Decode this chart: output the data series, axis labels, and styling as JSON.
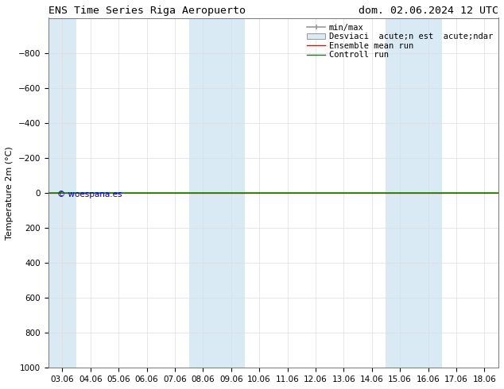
{
  "title_left": "ENS Time Series Riga Aeropuerto",
  "title_right": "dom. 02.06.2024 12 UTC",
  "ylabel": "Temperature 2m (°C)",
  "ylim": [
    -1000,
    1000
  ],
  "yticks": [
    -800,
    -600,
    -400,
    -200,
    0,
    200,
    400,
    600,
    800,
    1000
  ],
  "xlabels": [
    "03.06",
    "04.06",
    "05.06",
    "06.06",
    "07.06",
    "08.06",
    "09.06",
    "10.06",
    "11.06",
    "12.06",
    "13.06",
    "14.06",
    "15.06",
    "16.06",
    "17.06",
    "18.06"
  ],
  "xvalues": [
    0,
    1,
    2,
    3,
    4,
    5,
    6,
    7,
    8,
    9,
    10,
    11,
    12,
    13,
    14,
    15
  ],
  "blue_band_indices": [
    0,
    5,
    6,
    12,
    13
  ],
  "control_run_color": "#008800",
  "ensemble_mean_color": "#ff0000",
  "minmax_color": "#999999",
  "band_color": "#daeaf5",
  "bg_color": "#ffffff",
  "watermark": "© woespana.es",
  "watermark_color": "#0000bb",
  "legend_line1": "min/max",
  "legend_line2": "Desviaci  acute;n est  acute;ndar",
  "legend_line3": "Ensemble mean run",
  "legend_line4": "Controll run",
  "title_fontsize": 9.5,
  "axis_fontsize": 8,
  "tick_fontsize": 7.5,
  "legend_fontsize": 7.5
}
